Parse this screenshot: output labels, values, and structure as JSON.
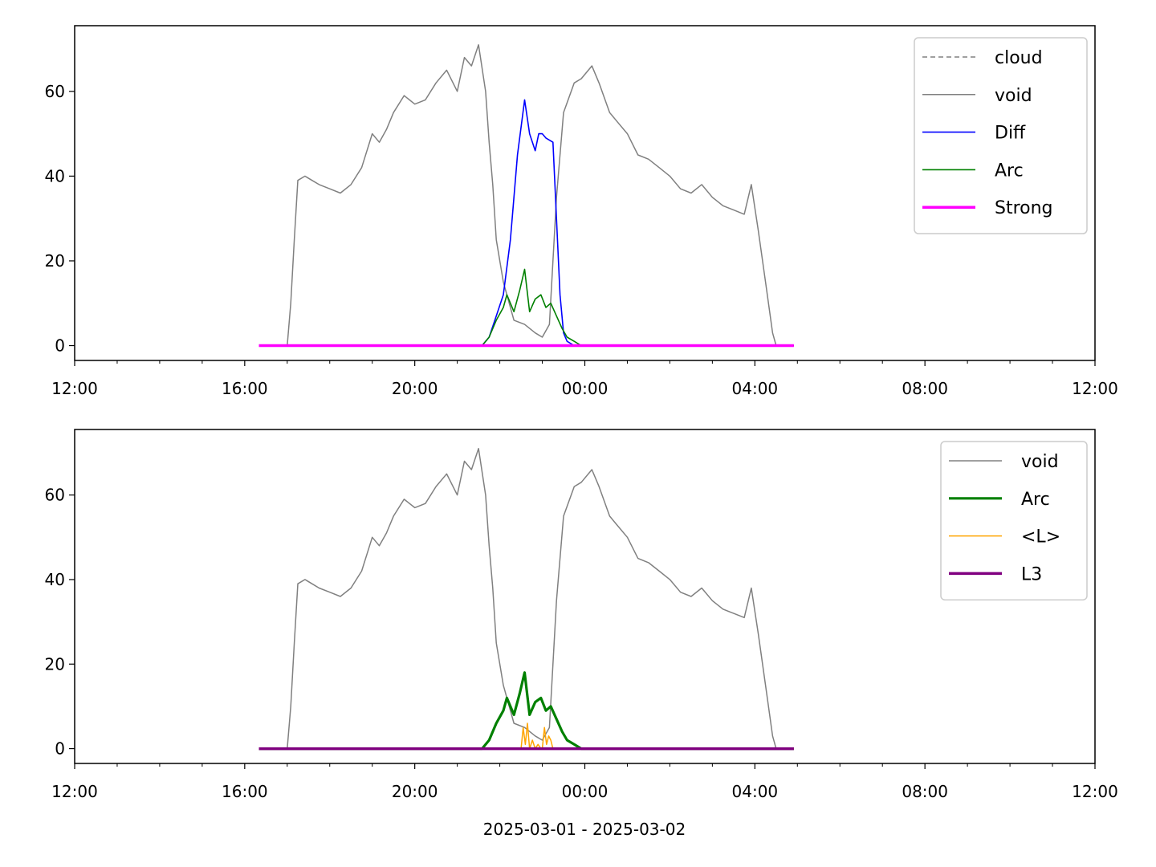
{
  "figure": {
    "xlabel": "2025-03-01 - 2025-03-02"
  },
  "chart_data": [
    {
      "type": "line",
      "title": "",
      "xlabel": "",
      "ylabel": "",
      "x_unit": "time (2025-03-01 12:00 to 2025-03-02 12:00)",
      "xlim": [
        "12:00",
        "12:00"
      ],
      "ylim": [
        -3.5,
        75.5
      ],
      "x_ticks": [
        "12:00",
        "16:00",
        "20:00",
        "00:00",
        "04:00",
        "08:00",
        "12:00"
      ],
      "y_ticks": [
        "0",
        "20",
        "40",
        "60"
      ],
      "legend": {
        "position": "top-right",
        "entries": [
          "cloud",
          "void",
          "Diff",
          "Arc",
          "Strong"
        ]
      },
      "series": [
        {
          "name": "cloud",
          "color": "#808080",
          "style": "dashed",
          "x": [],
          "values": []
        },
        {
          "name": "void",
          "color": "#808080",
          "style": "solid",
          "x": [
            "16:20",
            "17:00",
            "17:05",
            "17:10",
            "17:15",
            "17:25",
            "17:35",
            "17:45",
            "18:00",
            "18:15",
            "18:30",
            "18:45",
            "19:00",
            "19:10",
            "19:20",
            "19:30",
            "19:45",
            "20:00",
            "20:15",
            "20:30",
            "20:45",
            "21:00",
            "21:10",
            "21:20",
            "21:30",
            "21:40",
            "21:45",
            "21:50",
            "21:55",
            "22:05",
            "22:20",
            "22:35",
            "22:50",
            "23:00",
            "23:10",
            "23:20",
            "23:30",
            "23:45",
            "23:55",
            "00:10",
            "00:20",
            "00:35",
            "00:45",
            "01:00",
            "01:15",
            "01:30",
            "01:45",
            "02:00",
            "02:15",
            "02:30",
            "02:45",
            "03:00",
            "03:15",
            "03:30",
            "03:45",
            "03:55",
            "04:05",
            "04:15",
            "04:25",
            "04:30",
            "04:40",
            "04:55"
          ],
          "values": [
            0,
            0,
            10,
            25,
            39,
            40,
            39,
            38,
            37,
            36,
            38,
            42,
            50,
            48,
            51,
            55,
            59,
            57,
            58,
            62,
            65,
            60,
            68,
            66,
            71,
            60,
            48,
            38,
            25,
            15,
            6,
            5,
            3,
            2,
            5,
            35,
            55,
            62,
            63,
            66,
            62,
            55,
            53,
            50,
            45,
            44,
            42,
            40,
            37,
            36,
            38,
            35,
            33,
            32,
            31,
            38,
            27,
            15,
            3,
            0,
            0,
            0
          ]
        },
        {
          "name": "Diff",
          "color": "#0000ff",
          "style": "solid",
          "x": [
            "16:20",
            "21:35",
            "21:45",
            "21:55",
            "22:05",
            "22:15",
            "22:25",
            "22:35",
            "22:42",
            "22:50",
            "22:55",
            "23:00",
            "23:05",
            "23:15",
            "23:20",
            "23:25",
            "23:30",
            "23:35",
            "23:45",
            "23:55",
            "04:55"
          ],
          "values": [
            0,
            0,
            2,
            7,
            12,
            25,
            45,
            58,
            50,
            46,
            50,
            50,
            49,
            48,
            30,
            12,
            3,
            1,
            0,
            0,
            0
          ]
        },
        {
          "name": "Arc",
          "color": "#008000",
          "style": "solid",
          "x": [
            "16:20",
            "21:35",
            "21:45",
            "21:55",
            "22:05",
            "22:10",
            "22:20",
            "22:28",
            "22:35",
            "22:42",
            "22:50",
            "22:58",
            "23:05",
            "23:12",
            "23:20",
            "23:28",
            "23:35",
            "23:45",
            "23:55",
            "04:55"
          ],
          "values": [
            0,
            0,
            2,
            6,
            9,
            12,
            8,
            13,
            18,
            8,
            11,
            12,
            9,
            10,
            7,
            4,
            2,
            1,
            0,
            0
          ]
        },
        {
          "name": "Strong",
          "color": "#ff00ff",
          "style": "solid",
          "x": [
            "16:20",
            "04:55"
          ],
          "values": [
            0,
            0
          ]
        }
      ]
    },
    {
      "type": "line",
      "title": "",
      "xlabel": "2025-03-01 - 2025-03-02",
      "ylabel": "",
      "x_unit": "time (2025-03-01 12:00 to 2025-03-02 12:00)",
      "xlim": [
        "12:00",
        "12:00"
      ],
      "ylim": [
        -3.5,
        75.5
      ],
      "x_ticks": [
        "12:00",
        "16:00",
        "20:00",
        "00:00",
        "04:00",
        "08:00",
        "12:00"
      ],
      "y_ticks": [
        "0",
        "20",
        "40",
        "60"
      ],
      "legend": {
        "position": "top-right",
        "entries": [
          "void",
          "Arc",
          "<L>",
          "L3"
        ]
      },
      "series": [
        {
          "name": "void",
          "color": "#808080",
          "style": "solid",
          "x": [
            "16:20",
            "17:00",
            "17:05",
            "17:10",
            "17:15",
            "17:25",
            "17:35",
            "17:45",
            "18:00",
            "18:15",
            "18:30",
            "18:45",
            "19:00",
            "19:10",
            "19:20",
            "19:30",
            "19:45",
            "20:00",
            "20:15",
            "20:30",
            "20:45",
            "21:00",
            "21:10",
            "21:20",
            "21:30",
            "21:40",
            "21:45",
            "21:50",
            "21:55",
            "22:05",
            "22:20",
            "22:35",
            "22:50",
            "23:00",
            "23:10",
            "23:20",
            "23:30",
            "23:45",
            "23:55",
            "00:10",
            "00:20",
            "00:35",
            "00:45",
            "01:00",
            "01:15",
            "01:30",
            "01:45",
            "02:00",
            "02:15",
            "02:30",
            "02:45",
            "03:00",
            "03:15",
            "03:30",
            "03:45",
            "03:55",
            "04:05",
            "04:15",
            "04:25",
            "04:30",
            "04:40",
            "04:55"
          ],
          "values": [
            0,
            0,
            10,
            25,
            39,
            40,
            39,
            38,
            37,
            36,
            38,
            42,
            50,
            48,
            51,
            55,
            59,
            57,
            58,
            62,
            65,
            60,
            68,
            66,
            71,
            60,
            48,
            38,
            25,
            15,
            6,
            5,
            3,
            2,
            5,
            35,
            55,
            62,
            63,
            66,
            62,
            55,
            53,
            50,
            45,
            44,
            42,
            40,
            37,
            36,
            38,
            35,
            33,
            32,
            31,
            38,
            27,
            15,
            3,
            0,
            0,
            0
          ]
        },
        {
          "name": "Arc",
          "color": "#008000",
          "style": "solid",
          "x": [
            "16:20",
            "21:35",
            "21:45",
            "21:55",
            "22:05",
            "22:10",
            "22:20",
            "22:28",
            "22:35",
            "22:42",
            "22:50",
            "22:58",
            "23:05",
            "23:12",
            "23:20",
            "23:28",
            "23:35",
            "23:45",
            "23:55",
            "04:55"
          ],
          "values": [
            0,
            0,
            2,
            6,
            9,
            12,
            8,
            13,
            18,
            8,
            11,
            12,
            9,
            10,
            7,
            4,
            2,
            1,
            0,
            0
          ]
        },
        {
          "name": "<L>",
          "color": "#ffa500",
          "style": "solid",
          "x": [
            "16:20",
            "22:30",
            "22:33",
            "22:36",
            "22:39",
            "22:42",
            "22:46",
            "22:50",
            "22:54",
            "22:58",
            "23:00",
            "23:03",
            "23:06",
            "23:09",
            "23:12",
            "23:15",
            "04:55"
          ],
          "values": [
            0,
            0,
            5,
            1,
            6,
            0,
            2,
            0,
            1,
            0,
            0,
            5,
            1,
            3,
            2,
            0,
            0
          ]
        },
        {
          "name": "L3",
          "color": "#800080",
          "style": "solid",
          "x": [
            "16:20",
            "04:55"
          ],
          "values": [
            0,
            0
          ]
        }
      ]
    }
  ]
}
